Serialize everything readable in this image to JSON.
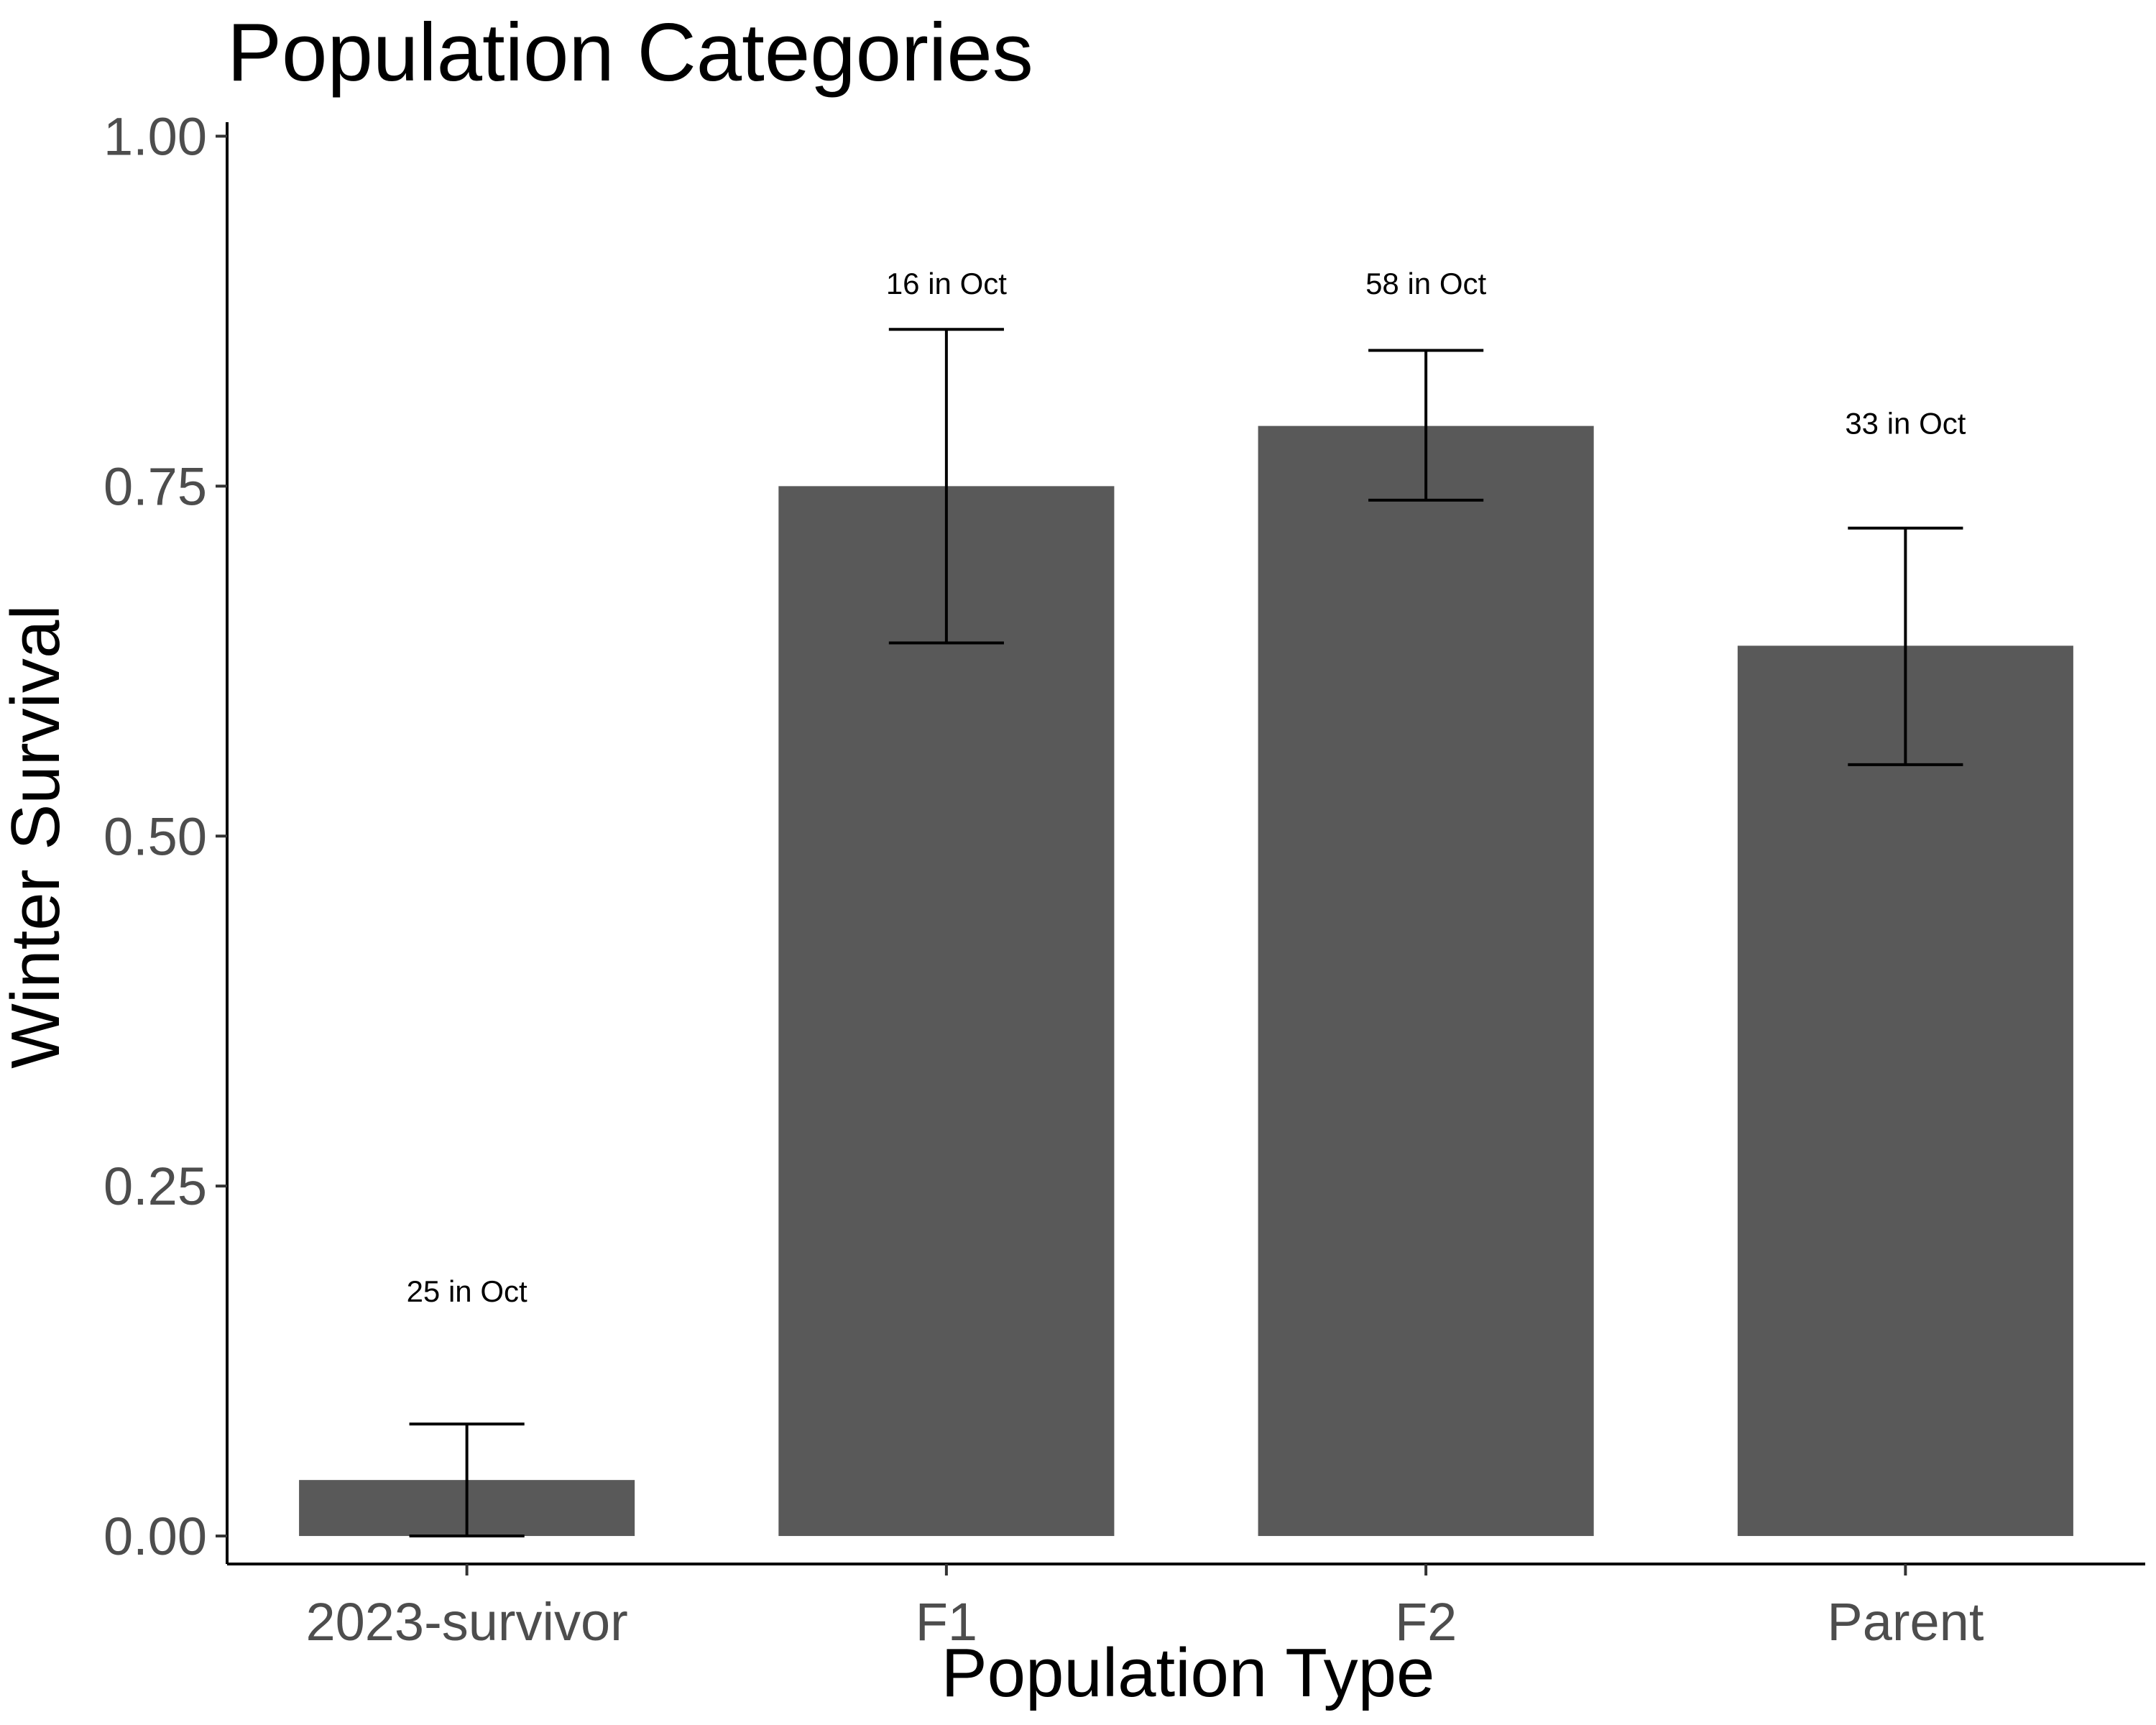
{
  "chart_data": {
    "type": "bar",
    "title": "Population Categories",
    "xlabel": "Population Type",
    "ylabel": "Winter Survival",
    "categories": [
      "2023-survivor",
      "F1",
      "F2",
      "Parent"
    ],
    "values": [
      0.04,
      0.75,
      0.793,
      0.636
    ],
    "error_low": [
      0.0,
      0.638,
      0.74,
      0.551
    ],
    "error_high": [
      0.08,
      0.862,
      0.847,
      0.72
    ],
    "annotations": [
      "25 in Oct",
      "16 in Oct",
      "58 in Oct",
      "33 in Oct"
    ],
    "annotation_y": [
      0.175,
      0.895,
      0.895,
      0.795
    ],
    "ylim": [
      -0.02,
      1.01
    ],
    "yticks": [
      0.0,
      0.25,
      0.5,
      0.75,
      1.0
    ],
    "ytick_labels": [
      "0.00",
      "0.25",
      "0.50",
      "0.75",
      "1.00"
    ],
    "grid": false,
    "legend": "none",
    "bar_color": "#595959",
    "errorbar_color": "#000000"
  }
}
